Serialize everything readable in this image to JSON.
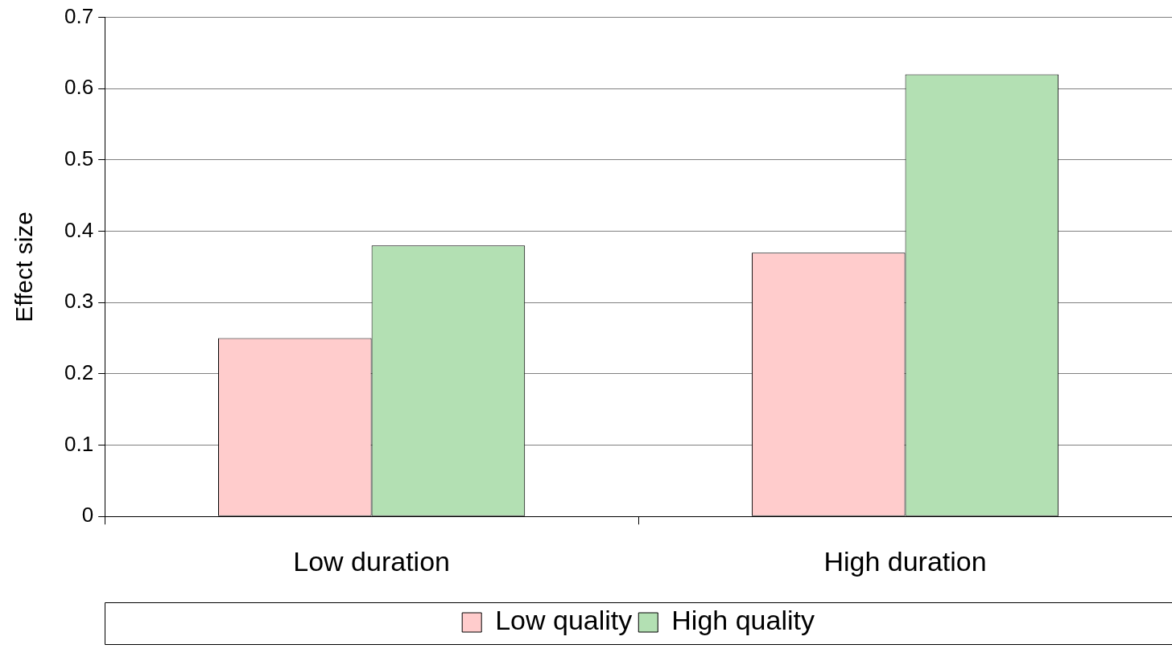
{
  "chart_data": {
    "type": "bar",
    "ylabel": "Effect size",
    "categories": [
      "Low duration",
      "High duration"
    ],
    "series": [
      {
        "name": "Low quality",
        "color": "#ffcccc",
        "values": [
          0.25,
          0.37
        ]
      },
      {
        "name": "High quality",
        "color": "#b3e0b3",
        "values": [
          0.38,
          0.62
        ]
      }
    ],
    "ylim": [
      0,
      0.7
    ],
    "yticks": [
      0,
      0.1,
      0.2,
      0.3,
      0.4,
      0.5,
      0.6,
      0.7
    ],
    "grid": "y",
    "legend": "bottom"
  }
}
